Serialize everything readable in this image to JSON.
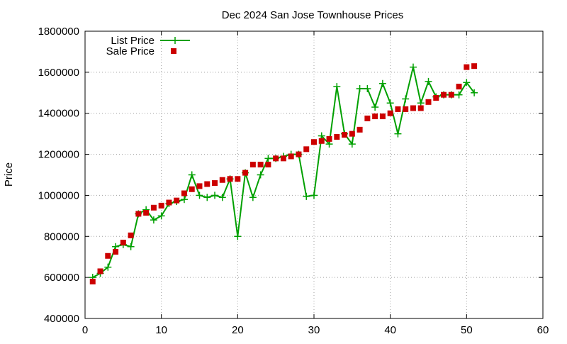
{
  "chart_data": {
    "type": "scatter",
    "title": "Dec 2024 San Jose Townhouse Prices",
    "xlabel": "",
    "ylabel": "Price",
    "xlim": [
      0,
      60
    ],
    "ylim": [
      400000,
      1800000
    ],
    "x_ticks": [
      0,
      10,
      20,
      30,
      40,
      50,
      60
    ],
    "y_ticks": [
      400000,
      600000,
      800000,
      1000000,
      1200000,
      1400000,
      1600000,
      1800000
    ],
    "x_tick_labels": [
      "0",
      "10",
      "20",
      "30",
      "40",
      "50",
      "60"
    ],
    "y_tick_labels": [
      "400000",
      "600000",
      "800000",
      "1000000",
      "1200000",
      "1400000",
      "1600000",
      "1800000"
    ],
    "grid": true,
    "legend_position": "top-left",
    "series": [
      {
        "name": "List Price",
        "style": "linespoints",
        "marker": "plus",
        "color": "#00a000",
        "x": [
          1,
          2,
          3,
          4,
          5,
          6,
          7,
          8,
          9,
          10,
          11,
          12,
          13,
          14,
          15,
          16,
          17,
          18,
          19,
          20,
          21,
          22,
          23,
          24,
          25,
          26,
          27,
          28,
          29,
          30,
          31,
          32,
          33,
          34,
          35,
          36,
          37,
          38,
          39,
          40,
          41,
          42,
          43,
          44,
          45,
          46,
          47,
          48,
          49,
          50,
          51
        ],
        "y": [
          600000,
          620000,
          650000,
          750000,
          760000,
          750000,
          910000,
          930000,
          880000,
          900000,
          960000,
          970000,
          980000,
          1100000,
          1000000,
          990000,
          1000000,
          990000,
          1080000,
          800000,
          1110000,
          990000,
          1100000,
          1180000,
          1180000,
          1190000,
          1200000,
          1200000,
          995000,
          1000000,
          1290000,
          1250000,
          1530000,
          1300000,
          1250000,
          1520000,
          1520000,
          1430000,
          1545000,
          1450000,
          1300000,
          1470000,
          1625000,
          1450000,
          1555000,
          1480000,
          1490000,
          1490000,
          1490000,
          1550000,
          1500000
        ]
      },
      {
        "name": "Sale Price",
        "style": "points",
        "marker": "square",
        "color": "#cc0000",
        "x": [
          1,
          2,
          3,
          4,
          5,
          6,
          7,
          8,
          9,
          10,
          11,
          12,
          13,
          14,
          15,
          16,
          17,
          18,
          19,
          20,
          21,
          22,
          23,
          24,
          25,
          26,
          27,
          28,
          29,
          30,
          31,
          32,
          33,
          34,
          35,
          36,
          37,
          38,
          39,
          40,
          41,
          42,
          43,
          44,
          45,
          46,
          47,
          48,
          49,
          50,
          51
        ],
        "y": [
          580000,
          630000,
          705000,
          725000,
          770000,
          805000,
          910000,
          915000,
          940000,
          950000,
          965000,
          975000,
          1010000,
          1030000,
          1045000,
          1055000,
          1060000,
          1075000,
          1080000,
          1080000,
          1110000,
          1150000,
          1150000,
          1150000,
          1180000,
          1180000,
          1190000,
          1200000,
          1225000,
          1260000,
          1265000,
          1275000,
          1285000,
          1295000,
          1300000,
          1320000,
          1375000,
          1385000,
          1385000,
          1400000,
          1420000,
          1420000,
          1425000,
          1425000,
          1455000,
          1475000,
          1490000,
          1490000,
          1530000,
          1625000,
          1630000
        ]
      }
    ]
  }
}
